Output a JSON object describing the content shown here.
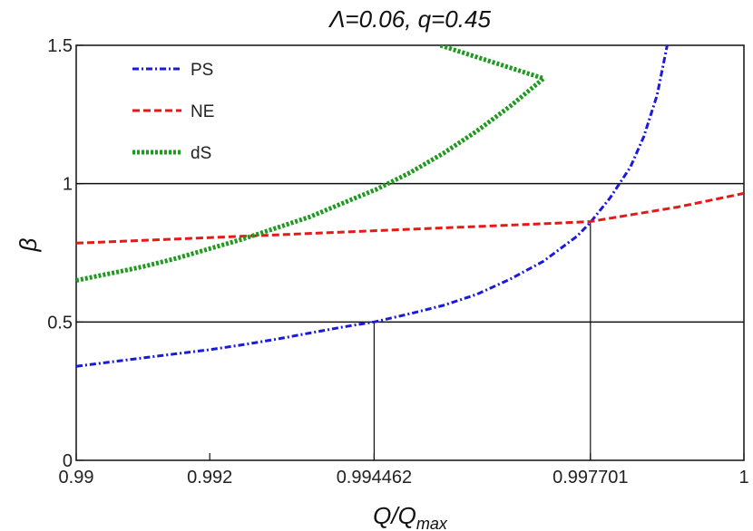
{
  "chart_data": {
    "type": "line",
    "title": "Λ=0.06, q=0.45",
    "xlabel": {
      "main": "Q/Q",
      "sub": "max"
    },
    "ylabel": "β",
    "xlim": [
      0.99,
      1.0
    ],
    "ylim": [
      0,
      1.5
    ],
    "x_ticks": [
      {
        "value": 0.99,
        "label": "0.99"
      },
      {
        "value": 0.992,
        "label": "0.992"
      },
      {
        "value": 0.994462,
        "label": "0.994462"
      },
      {
        "value": 0.997701,
        "label": "0.997701"
      },
      {
        "value": 1.0,
        "label": "1"
      }
    ],
    "y_ticks": [
      {
        "value": 0,
        "label": "0"
      },
      {
        "value": 0.5,
        "label": "0.5"
      },
      {
        "value": 1,
        "label": "1"
      },
      {
        "value": 1.5,
        "label": "1.5"
      }
    ],
    "horizontal_lines": [
      0.5,
      1
    ],
    "vertical_markers": [
      {
        "x": 0.994462,
        "y": 0.5
      },
      {
        "x": 0.997701,
        "y": 0.86
      }
    ],
    "legend_position": "top-left",
    "series": [
      {
        "name": "PS",
        "color": "#1a1adb",
        "dash": "dashdot",
        "points": [
          [
            0.99,
            0.34
          ],
          [
            0.9905,
            0.355
          ],
          [
            0.991,
            0.37
          ],
          [
            0.9915,
            0.385
          ],
          [
            0.992,
            0.4
          ],
          [
            0.9925,
            0.418
          ],
          [
            0.993,
            0.438
          ],
          [
            0.9935,
            0.46
          ],
          [
            0.994,
            0.482
          ],
          [
            0.994462,
            0.5
          ],
          [
            0.995,
            0.53
          ],
          [
            0.9955,
            0.56
          ],
          [
            0.996,
            0.6
          ],
          [
            0.9965,
            0.655
          ],
          [
            0.997,
            0.72
          ],
          [
            0.9975,
            0.81
          ],
          [
            0.997701,
            0.86
          ],
          [
            0.998,
            0.95
          ],
          [
            0.9983,
            1.06
          ],
          [
            0.9985,
            1.17
          ],
          [
            0.9987,
            1.32
          ],
          [
            0.99885,
            1.5
          ]
        ]
      },
      {
        "name": "NE",
        "color": "#e41a1a",
        "dash": "dashed",
        "points": [
          [
            0.99,
            0.785
          ],
          [
            0.991,
            0.795
          ],
          [
            0.992,
            0.805
          ],
          [
            0.993,
            0.815
          ],
          [
            0.994,
            0.825
          ],
          [
            0.995,
            0.835
          ],
          [
            0.996,
            0.845
          ],
          [
            0.997,
            0.855
          ],
          [
            0.997701,
            0.863
          ],
          [
            0.998,
            0.875
          ],
          [
            0.999,
            0.915
          ],
          [
            1.0,
            0.965
          ]
        ]
      },
      {
        "name": "dS",
        "color": "#1f9a1f",
        "dash": "dotted",
        "points": [
          [
            0.99,
            0.65
          ],
          [
            0.9905,
            0.675
          ],
          [
            0.991,
            0.7
          ],
          [
            0.9915,
            0.73
          ],
          [
            0.992,
            0.765
          ],
          [
            0.9925,
            0.8
          ],
          [
            0.993,
            0.84
          ],
          [
            0.9935,
            0.88
          ],
          [
            0.994,
            0.93
          ],
          [
            0.9945,
            0.98
          ],
          [
            0.995,
            1.04
          ],
          [
            0.9955,
            1.11
          ],
          [
            0.996,
            1.19
          ],
          [
            0.9965,
            1.28
          ],
          [
            0.997,
            1.38
          ],
          [
            0.99545,
            1.5
          ]
        ]
      }
    ]
  }
}
